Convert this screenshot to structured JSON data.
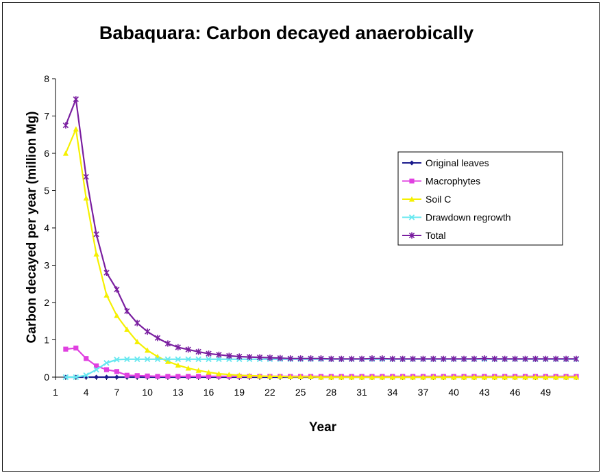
{
  "chart_data": {
    "type": "line",
    "title": "Babaquara: Carbon decayed anaerobically",
    "xlabel": "Year",
    "ylabel": "Carbon decayed per year (million Mg)",
    "xlim": [
      1,
      52
    ],
    "ylim": [
      0,
      8
    ],
    "x_ticks": [
      1,
      4,
      7,
      10,
      13,
      16,
      19,
      22,
      25,
      28,
      31,
      34,
      37,
      40,
      43,
      46,
      49
    ],
    "y_ticks": [
      0,
      1,
      2,
      3,
      4,
      5,
      6,
      7,
      8
    ],
    "grid": false,
    "legend_position": "right",
    "x": [
      2,
      3,
      4,
      5,
      6,
      7,
      8,
      9,
      10,
      11,
      12,
      13,
      14,
      15,
      16,
      17,
      18,
      19,
      20,
      21,
      22,
      23,
      24,
      25,
      26,
      27,
      28,
      29,
      30,
      31,
      32,
      33,
      34,
      35,
      36,
      37,
      38,
      39,
      40,
      41,
      42,
      43,
      44,
      45,
      46,
      47,
      48,
      49,
      50,
      51,
      52
    ],
    "series": [
      {
        "name": "Original leaves",
        "color": "#1a1a8c",
        "marker": "diamond",
        "values": [
          0,
          0,
          0,
          0,
          0,
          0,
          0,
          0,
          0,
          0,
          0,
          0,
          0,
          0,
          0,
          0,
          0,
          0,
          0,
          0,
          0,
          0,
          0,
          0,
          0,
          0,
          0,
          0,
          0,
          0,
          0,
          0,
          0,
          0,
          0,
          0,
          0,
          0,
          0,
          0,
          0,
          0,
          0,
          0,
          0,
          0,
          0,
          0,
          0,
          0,
          0
        ]
      },
      {
        "name": "Macrophytes",
        "color": "#e040e0",
        "marker": "square",
        "values": [
          0.75,
          0.78,
          0.5,
          0.3,
          0.2,
          0.15,
          0.05,
          0.04,
          0.03,
          0.02,
          0.02,
          0.02,
          0.02,
          0.02,
          0.02,
          0.02,
          0.02,
          0.02,
          0.02,
          0.02,
          0.02,
          0.02,
          0.02,
          0.02,
          0.02,
          0.02,
          0.02,
          0.02,
          0.02,
          0.02,
          0.02,
          0.02,
          0.02,
          0.02,
          0.02,
          0.02,
          0.02,
          0.02,
          0.02,
          0.02,
          0.02,
          0.02,
          0.02,
          0.02,
          0.02,
          0.02,
          0.02,
          0.02,
          0.02,
          0.02,
          0.02
        ]
      },
      {
        "name": "Soil C",
        "color": "#f5f000",
        "marker": "triangle",
        "values": [
          6.0,
          6.65,
          4.8,
          3.3,
          2.2,
          1.65,
          1.28,
          0.95,
          0.72,
          0.55,
          0.42,
          0.32,
          0.24,
          0.18,
          0.13,
          0.09,
          0.07,
          0.05,
          0.04,
          0.03,
          0.02,
          0.02,
          0.01,
          0.01,
          0.01,
          0,
          0,
          0,
          0,
          0,
          0,
          0,
          0,
          0,
          0,
          0,
          0,
          0,
          0,
          0,
          0,
          0,
          0,
          0,
          0,
          0,
          0,
          0,
          0,
          0,
          0
        ]
      },
      {
        "name": "Drawdown regrowth",
        "color": "#66e8f0",
        "marker": "x",
        "values": [
          0,
          0,
          0.05,
          0.2,
          0.38,
          0.47,
          0.48,
          0.48,
          0.48,
          0.48,
          0.48,
          0.48,
          0.48,
          0.48,
          0.48,
          0.48,
          0.48,
          0.48,
          0.48,
          0.48,
          0.48,
          0.48,
          0.48,
          0.48,
          0.48,
          0.48,
          0.48,
          0.48,
          0.48,
          0.48,
          0.48,
          0.48,
          0.48,
          0.48,
          0.48,
          0.48,
          0.48,
          0.48,
          0.48,
          0.48,
          0.48,
          0.48,
          0.48,
          0.48,
          0.48,
          0.48,
          0.48,
          0.48,
          0.48,
          0.48,
          0.48
        ]
      },
      {
        "name": "Total",
        "color": "#7a1fa0",
        "marker": "star",
        "values": [
          6.75,
          7.45,
          5.37,
          3.83,
          2.8,
          2.35,
          1.77,
          1.45,
          1.22,
          1.05,
          0.9,
          0.8,
          0.74,
          0.68,
          0.63,
          0.6,
          0.57,
          0.55,
          0.54,
          0.53,
          0.52,
          0.51,
          0.5,
          0.5,
          0.5,
          0.5,
          0.49,
          0.49,
          0.49,
          0.49,
          0.5,
          0.5,
          0.49,
          0.49,
          0.49,
          0.49,
          0.49,
          0.49,
          0.49,
          0.49,
          0.49,
          0.5,
          0.49,
          0.49,
          0.49,
          0.49,
          0.49,
          0.49,
          0.49,
          0.49,
          0.49
        ]
      }
    ]
  }
}
